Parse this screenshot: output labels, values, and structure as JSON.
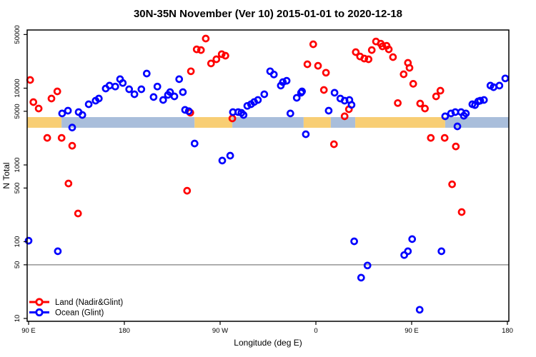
{
  "title": "30N-35N November (Ver 10)   2015-01-01 to 2020-12-18",
  "chart_data": {
    "type": "scatter",
    "title": "30N-35N November (Ver 10)   2015-01-01 to 2020-12-18",
    "xlabel": "Longitude (deg E)",
    "ylabel": "N Total",
    "y_scale": "log",
    "grid": false,
    "x_axis": {
      "start_lon": 90,
      "end_lon": 540,
      "ticks": [
        {
          "lon": 90,
          "label": "90 E"
        },
        {
          "lon": 180,
          "label": "180"
        },
        {
          "lon": 270,
          "label": "90 W"
        },
        {
          "lon": 360,
          "label": "0"
        },
        {
          "lon": 450,
          "label": "90 E"
        },
        {
          "lon": 540,
          "label": "180"
        }
      ]
    },
    "y_axis": {
      "range": [
        9,
        58000
      ],
      "ticks": [
        {
          "value": 50000,
          "label": "50000"
        },
        {
          "value": 10000,
          "label": "10000"
        },
        {
          "value": 5000,
          "label": "5000"
        },
        {
          "value": 1000,
          "label": "1000"
        },
        {
          "value": 500,
          "label": "500"
        },
        {
          "value": 100,
          "label": "100"
        },
        {
          "value": 50,
          "label": "50"
        },
        {
          "value": 10,
          "label": "10"
        }
      ]
    },
    "reference_line": {
      "value": 50,
      "color": "#808080"
    },
    "surface_band": {
      "value_top": 4200,
      "value_bottom": 3050,
      "land_color": "#F8CE74",
      "ocean_color": "#A9BEDB",
      "segments": [
        {
          "type": "land",
          "from": 88.5,
          "to": 121
        },
        {
          "type": "ocean",
          "from": 121,
          "to": 246
        },
        {
          "type": "land",
          "from": 246,
          "to": 281.5
        },
        {
          "type": "ocean",
          "from": 281.5,
          "to": 348.5
        },
        {
          "type": "land",
          "from": 348.5,
          "to": 374
        },
        {
          "type": "ocean",
          "from": 374,
          "to": 397
        },
        {
          "type": "land",
          "from": 397,
          "to": 481.5
        },
        {
          "type": "ocean",
          "from": 481.5,
          "to": 541.5
        }
      ]
    },
    "legend": {
      "position": "bottom-left"
    },
    "series": [
      {
        "name": "Land (Nadir&Glint)",
        "color": "#FF0000",
        "points": [
          [
            91.5,
            12800
          ],
          [
            94.5,
            6590
          ],
          [
            99.5,
            5430
          ],
          [
            107.5,
            2250
          ],
          [
            111.5,
            7330
          ],
          [
            117,
            9080
          ],
          [
            121,
            2250
          ],
          [
            127.5,
            573
          ],
          [
            131,
            1780
          ],
          [
            136.5,
            233
          ],
          [
            239,
            462
          ],
          [
            242,
            4800
          ],
          [
            242.5,
            16600
          ],
          [
            248,
            32100
          ],
          [
            252,
            31400
          ],
          [
            256.5,
            44300
          ],
          [
            261.5,
            21000
          ],
          [
            266.5,
            23800
          ],
          [
            271.5,
            27700
          ],
          [
            275,
            26500
          ],
          [
            281.5,
            4030
          ],
          [
            352,
            20500
          ],
          [
            357.5,
            37300
          ],
          [
            362,
            19600
          ],
          [
            367.5,
            9480
          ],
          [
            369.5,
            15900
          ],
          [
            377,
            1860
          ],
          [
            387,
            4300
          ],
          [
            391,
            5320
          ],
          [
            397.5,
            29500
          ],
          [
            401.5,
            25900
          ],
          [
            405.5,
            24300
          ],
          [
            409.5,
            23800
          ],
          [
            412.5,
            31400
          ],
          [
            416.5,
            40600
          ],
          [
            421,
            38100
          ],
          [
            422.5,
            35000
          ],
          [
            426.5,
            35700
          ],
          [
            428.5,
            32100
          ],
          [
            432.5,
            25400
          ],
          [
            437,
            6400
          ],
          [
            442.5,
            15200
          ],
          [
            446.5,
            21400
          ],
          [
            448,
            18400
          ],
          [
            451.5,
            11400
          ],
          [
            458,
            6310
          ],
          [
            462.5,
            5430
          ],
          [
            468,
            2250
          ],
          [
            473,
            7820
          ],
          [
            477,
            9270
          ],
          [
            481,
            2250
          ],
          [
            488,
            560
          ],
          [
            491.5,
            1740
          ],
          [
            497,
            243
          ]
        ]
      },
      {
        "name": "Ocean (Glint)",
        "color": "#0000FF",
        "points": [
          [
            90,
            103
          ],
          [
            117.5,
            75
          ],
          [
            121.5,
            4680
          ],
          [
            127,
            5090
          ],
          [
            131,
            3070
          ],
          [
            137,
            4880
          ],
          [
            140.5,
            4480
          ],
          [
            146.5,
            6170
          ],
          [
            153,
            6870
          ],
          [
            156,
            7330
          ],
          [
            162.5,
            9890
          ],
          [
            166,
            10800
          ],
          [
            171.5,
            10500
          ],
          [
            176,
            13100
          ],
          [
            178.5,
            11700
          ],
          [
            184.5,
            9690
          ],
          [
            189.5,
            8330
          ],
          [
            196,
            9690
          ],
          [
            201,
            15500
          ],
          [
            207.5,
            7660
          ],
          [
            211,
            10500
          ],
          [
            216.5,
            7030
          ],
          [
            221,
            8170
          ],
          [
            223,
            8890
          ],
          [
            227,
            7820
          ],
          [
            231.5,
            13100
          ],
          [
            235,
            8890
          ],
          [
            237,
            5210
          ],
          [
            240.5,
            5020
          ],
          [
            246,
            1900
          ],
          [
            272,
            1140
          ],
          [
            279.5,
            1320
          ],
          [
            282,
            4880
          ],
          [
            287,
            4880
          ],
          [
            290,
            4780
          ],
          [
            292,
            4480
          ],
          [
            295.5,
            5880
          ],
          [
            299,
            6170
          ],
          [
            302,
            6600
          ],
          [
            305.5,
            7030
          ],
          [
            311.5,
            8330
          ],
          [
            317,
            16600
          ],
          [
            320.5,
            15100
          ],
          [
            327,
            10800
          ],
          [
            329,
            12000
          ],
          [
            332.5,
            12500
          ],
          [
            336,
            4680
          ],
          [
            342,
            7490
          ],
          [
            346,
            8720
          ],
          [
            347,
            9080
          ],
          [
            350.5,
            2510
          ],
          [
            372,
            5090
          ],
          [
            377.5,
            8720
          ],
          [
            383,
            7330
          ],
          [
            387,
            6870
          ],
          [
            391.5,
            7030
          ],
          [
            393.5,
            6060
          ],
          [
            396,
            101
          ],
          [
            402.5,
            34
          ],
          [
            408.5,
            49
          ],
          [
            443,
            67
          ],
          [
            446.5,
            75
          ],
          [
            450.5,
            108
          ],
          [
            457.5,
            13
          ],
          [
            478,
            75
          ],
          [
            481.5,
            4300
          ],
          [
            487,
            4680
          ],
          [
            491,
            4880
          ],
          [
            493,
            3180
          ],
          [
            496.5,
            4880
          ],
          [
            499,
            4370
          ],
          [
            501,
            4680
          ],
          [
            507,
            6170
          ],
          [
            509.5,
            6020
          ],
          [
            512.5,
            6730
          ],
          [
            514.5,
            6870
          ],
          [
            518,
            7030
          ],
          [
            524,
            10800
          ],
          [
            527,
            10300
          ],
          [
            532.5,
            10800
          ],
          [
            538,
            13400
          ]
        ]
      }
    ]
  }
}
